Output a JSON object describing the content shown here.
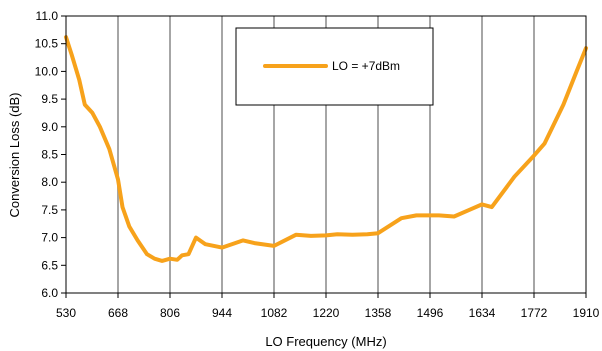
{
  "chart_data": {
    "type": "line",
    "xlabel": "LO Frequency (MHz)",
    "ylabel": "Conversion Loss (dB)",
    "xlim": [
      530,
      1910
    ],
    "ylim": [
      6.0,
      11.0
    ],
    "x_ticks": [
      "530",
      "668",
      "806",
      "944",
      "1082",
      "1220",
      "1358",
      "1496",
      "1634",
      "1772",
      "1910"
    ],
    "y_ticks": [
      "6.0",
      "6.5",
      "7.0",
      "7.5",
      "8.0",
      "8.5",
      "9.0",
      "9.5",
      "10.0",
      "10.5",
      "11.0"
    ],
    "grid": "vertical",
    "legend_position": "top-center",
    "series": [
      {
        "name": "LO = +7dBm",
        "color": "#F7A21B",
        "x": [
          530,
          545,
          565,
          580,
          600,
          620,
          645,
          668,
          680,
          698,
          720,
          745,
          765,
          785,
          806,
          825,
          838,
          855,
          875,
          900,
          944,
          1000,
          1030,
          1082,
          1140,
          1180,
          1220,
          1250,
          1290,
          1330,
          1358,
          1420,
          1460,
          1520,
          1560,
          1600,
          1634,
          1660,
          1720,
          1772,
          1800,
          1850,
          1885,
          1910
        ],
        "values": [
          10.62,
          10.3,
          9.85,
          9.4,
          9.25,
          9.0,
          8.6,
          8.05,
          7.55,
          7.2,
          6.95,
          6.7,
          6.62,
          6.58,
          6.62,
          6.6,
          6.68,
          6.7,
          7.0,
          6.88,
          6.82,
          6.95,
          6.9,
          6.85,
          7.05,
          7.03,
          7.04,
          7.06,
          7.05,
          7.06,
          7.08,
          7.35,
          7.4,
          7.4,
          7.38,
          7.5,
          7.6,
          7.55,
          8.1,
          8.48,
          8.7,
          9.4,
          10.0,
          10.42
        ]
      }
    ]
  }
}
